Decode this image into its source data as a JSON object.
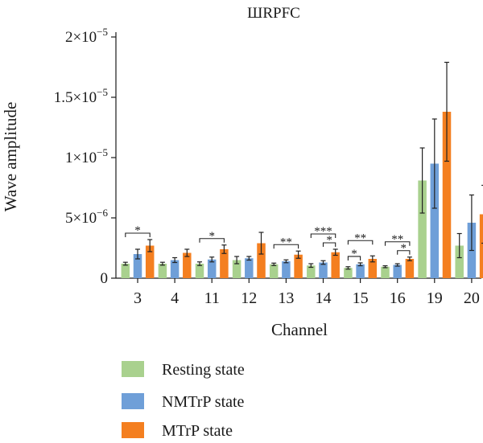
{
  "chart_data": {
    "type": "bar",
    "title": "ШRPFC",
    "xlabel": "Channel",
    "ylabel": "Wave amplitude",
    "ylim": [
      0,
      2e-05
    ],
    "grid": false,
    "legend_position": "bottom-left",
    "yticks": [
      {
        "value": 0,
        "mantissa": "0",
        "exponent": ""
      },
      {
        "value": 5e-06,
        "mantissa": "5×10",
        "exponent": "−6"
      },
      {
        "value": 1e-05,
        "mantissa": "1×10",
        "exponent": "−5"
      },
      {
        "value": 1.5e-05,
        "mantissa": "1.5×10",
        "exponent": "−5"
      },
      {
        "value": 2e-05,
        "mantissa": "2×10",
        "exponent": "−5"
      }
    ],
    "categories": [
      "3",
      "4",
      "11",
      "12",
      "13",
      "14",
      "15",
      "16",
      "19",
      "20"
    ],
    "series": [
      {
        "name": "Resting state",
        "color": "#a9d18e",
        "values": [
          1.2e-06,
          1.2e-06,
          1.2e-06,
          1.5e-06,
          1.15e-06,
          1.05e-06,
          8.5e-07,
          9.5e-07,
          8.1e-06,
          2.7e-06
        ],
        "errors": [
          1.2e-07,
          1.2e-07,
          1.5e-07,
          3e-07,
          1e-07,
          1.5e-07,
          1e-07,
          8e-08,
          2.7e-06,
          1e-06
        ]
      },
      {
        "name": "NMTrP state",
        "color": "#6f9fd8",
        "values": [
          2e-06,
          1.5e-06,
          1.55e-06,
          1.65e-06,
          1.4e-06,
          1.3e-06,
          1.15e-06,
          1.1e-06,
          9.5e-06,
          4.6e-06
        ],
        "errors": [
          4e-07,
          2e-07,
          2e-07,
          1.5e-07,
          1.2e-07,
          1.5e-07,
          1.2e-07,
          1e-07,
          3.7e-06,
          2.3e-06
        ]
      },
      {
        "name": "MTrP state",
        "color": "#f47f20",
        "values": [
          2.7e-06,
          2.1e-06,
          2.4e-06,
          2.9e-06,
          1.95e-06,
          2.15e-06,
          1.6e-06,
          1.6e-06,
          1.38e-05,
          5.3e-06
        ],
        "errors": [
          5e-07,
          3e-07,
          3.5e-07,
          9e-07,
          3e-07,
          2.5e-07,
          2.5e-07,
          1.5e-07,
          4.1e-06,
          2.4e-06
        ]
      }
    ],
    "significance": [
      {
        "category": "3",
        "from": 0,
        "to": 2,
        "label": "*",
        "level": 0
      },
      {
        "category": "11",
        "from": 0,
        "to": 2,
        "label": "*",
        "level": 0
      },
      {
        "category": "13",
        "from": 0,
        "to": 2,
        "label": "**",
        "level": 0
      },
      {
        "category": "14",
        "from": 1,
        "to": 2,
        "label": "*",
        "level": 0
      },
      {
        "category": "14",
        "from": 0,
        "to": 2,
        "label": "***",
        "level": 1
      },
      {
        "category": "15",
        "from": 0,
        "to": 1,
        "label": "*",
        "level": 0
      },
      {
        "category": "15",
        "from": 0,
        "to": 2,
        "label": "**",
        "level": 1
      },
      {
        "category": "16",
        "from": 1,
        "to": 2,
        "label": "*",
        "level": 0
      },
      {
        "category": "16",
        "from": 0,
        "to": 2,
        "label": "**",
        "level": 1
      }
    ]
  }
}
